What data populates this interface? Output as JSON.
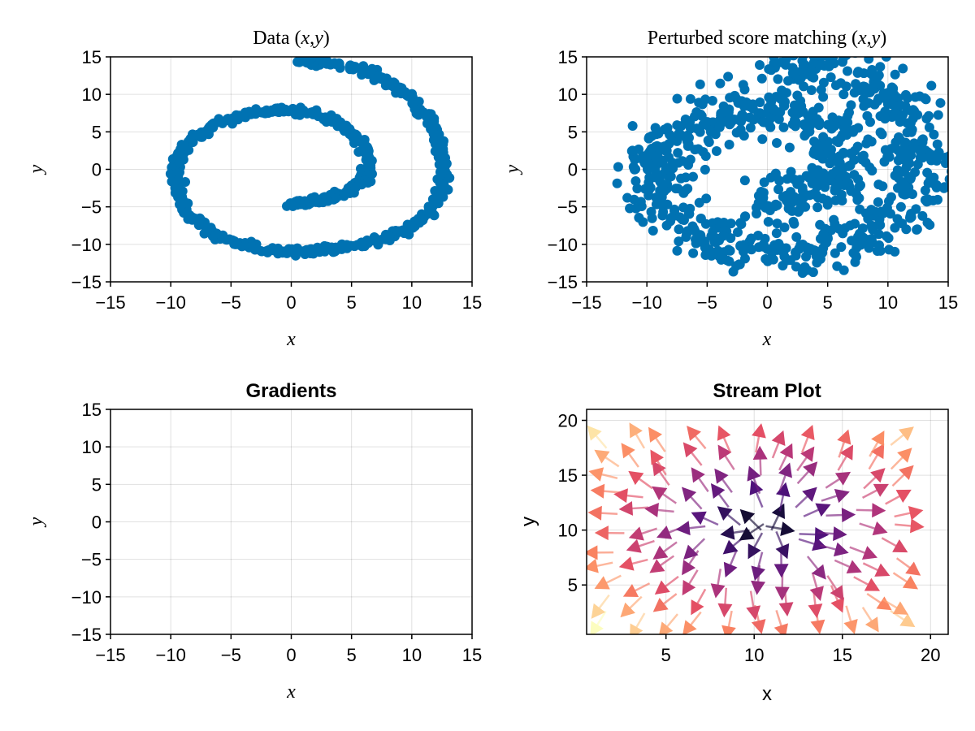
{
  "colors": {
    "scatter": "#0072b2",
    "colormap": "magma"
  },
  "chart_data": [
    {
      "id": "data",
      "type": "scatter",
      "title": "Data (x,y)",
      "title_parts": [
        "Data (",
        "x",
        ",",
        "y",
        ")"
      ],
      "xlabel": "x",
      "ylabel": "y",
      "xlim": [
        -15,
        15
      ],
      "ylim": [
        -15,
        15
      ],
      "xticks": [
        "−15",
        "−10",
        "−5",
        "0",
        "5",
        "10",
        "15"
      ],
      "yticks": [
        "−15",
        "−10",
        "−5",
        "0",
        "5",
        "10",
        "15"
      ],
      "grid": true,
      "series": [
        {
          "kind": "spiral",
          "points": [
            [
              0.5,
              14.3
            ],
            [
              3,
              14.2
            ],
            [
              6,
              13.3
            ],
            [
              8.5,
              11.5
            ],
            [
              10.5,
              8.5
            ],
            [
              12,
              5
            ],
            [
              12.6,
              1
            ],
            [
              12.4,
              -3
            ],
            [
              11.3,
              -6
            ],
            [
              9,
              -8.5
            ],
            [
              6,
              -10
            ],
            [
              3,
              -10.8
            ],
            [
              0,
              -11
            ],
            [
              -3,
              -10.5
            ],
            [
              -6,
              -9
            ],
            [
              -8.5,
              -6
            ],
            [
              -9.6,
              -2
            ],
            [
              -9.5,
              1
            ],
            [
              -8.5,
              3.5
            ],
            [
              -6.5,
              5.8
            ],
            [
              -3.5,
              7.5
            ],
            [
              -1,
              7.9
            ],
            [
              2,
              7.5
            ],
            [
              4.5,
              5.5
            ],
            [
              6,
              3
            ],
            [
              6.5,
              1
            ],
            [
              6,
              -1.5
            ],
            [
              4.5,
              -3.2
            ],
            [
              2,
              -4.3
            ],
            [
              0,
              -4.6
            ]
          ]
        }
      ]
    },
    {
      "id": "perturbed",
      "type": "scatter",
      "title": "Perturbed score matching (x,y)",
      "title_parts": [
        "Perturbed score matching (",
        "x",
        ",",
        "y",
        ")"
      ],
      "xlabel": "x",
      "ylabel": "y",
      "xlim": [
        -15,
        15
      ],
      "ylim": [
        -15,
        15
      ],
      "xticks": [
        "−15",
        "−10",
        "−5",
        "0",
        "5",
        "10",
        "15"
      ],
      "yticks": [
        "−15",
        "−10",
        "−5",
        "0",
        "5",
        "10",
        "15"
      ],
      "grid": true,
      "series": [
        {
          "kind": "noisy_spiral",
          "points_count": 900
        }
      ]
    },
    {
      "id": "gradients",
      "type": "scatter",
      "title": "Gradients",
      "xlabel": "x",
      "ylabel": "y",
      "xlim": [
        -15,
        15
      ],
      "ylim": [
        -15,
        15
      ],
      "xticks": [
        "−15",
        "−10",
        "−5",
        "0",
        "5",
        "10",
        "15"
      ],
      "yticks": [
        "−15",
        "−10",
        "−5",
        "0",
        "5",
        "10",
        "15"
      ],
      "grid": true,
      "series": []
    },
    {
      "id": "stream",
      "type": "streamplot",
      "title": "Stream Plot",
      "xlabel": "x",
      "ylabel": "y",
      "xlim": [
        0.5,
        21
      ],
      "ylim": [
        0.5,
        21
      ],
      "xtick_values": [
        5,
        10,
        15,
        20
      ],
      "ytick_values": [
        5,
        10,
        15,
        20
      ],
      "xticks": [
        "5",
        "10",
        "15",
        "20"
      ],
      "yticks": [
        "5",
        "10",
        "15",
        "20"
      ],
      "grid": true,
      "field": {
        "center": [
          10.5,
          10.5
        ],
        "direction": "outward"
      }
    }
  ]
}
